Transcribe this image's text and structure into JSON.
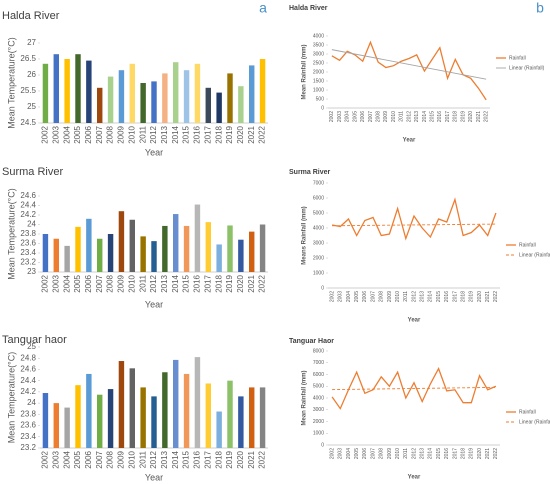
{
  "panels": [
    "a",
    "b"
  ],
  "chart_data": [
    {
      "type": "bar",
      "title": "Halda River",
      "xlabel": "Year",
      "ylabel": "Mean Temperature(°C)",
      "categories": [
        "2002",
        "2003",
        "2004",
        "2005",
        "2006",
        "2007",
        "2008",
        "2009",
        "2010",
        "2011",
        "2012",
        "2013",
        "2014",
        "2015",
        "2016",
        "2017",
        "2018",
        "2019",
        "2020",
        "2021",
        "2022"
      ],
      "values": [
        26.35,
        26.65,
        26.5,
        26.65,
        26.45,
        25.6,
        25.95,
        26.15,
        26.35,
        25.75,
        25.8,
        26.05,
        26.4,
        26.15,
        26.35,
        25.6,
        25.45,
        26.05,
        25.65,
        26.3,
        26.5
      ],
      "colors": [
        "#70ad47",
        "#4472c4",
        "#ffc000",
        "#43682b",
        "#264478",
        "#9e480e",
        "#a9d18e",
        "#5b9bd5",
        "#ffd966",
        "#43682b",
        "#4472c4",
        "#f4b183",
        "#a9d18e",
        "#9dc3e6",
        "#ffd966",
        "#3b4a5a",
        "#1f3864",
        "#997300",
        "#a9d18e",
        "#5b9bd5",
        "#ffc000"
      ],
      "ylim": [
        24.5,
        27
      ],
      "yticks": [
        24.5,
        25,
        25.5,
        26,
        26.5,
        27
      ],
      "grid": false
    },
    {
      "type": "bar",
      "title": "Surma River",
      "xlabel": "Year",
      "ylabel": "Mean Temperature(°C)",
      "categories": [
        "2002",
        "2003",
        "2004",
        "2005",
        "2006",
        "2007",
        "2008",
        "2009",
        "2010",
        "2011",
        "2012",
        "2013",
        "2014",
        "2015",
        "2016",
        "2017",
        "2018",
        "2019",
        "2020",
        "2021",
        "2022"
      ],
      "values": [
        23.8,
        23.7,
        23.55,
        23.95,
        24.12,
        23.7,
        23.8,
        24.28,
        24.1,
        23.75,
        23.65,
        23.97,
        24.22,
        23.97,
        24.42,
        24.05,
        23.58,
        23.98,
        23.68,
        23.85,
        24.0
      ],
      "colors": [
        "#4472c4",
        "#ed7d31",
        "#a5a5a5",
        "#ffc000",
        "#5b9bd5",
        "#70ad47",
        "#264478",
        "#9e480e",
        "#636363",
        "#997300",
        "#255e91",
        "#43682b",
        "#698ed0",
        "#f1975a",
        "#b7b7b7",
        "#ffcd33",
        "#7cafdd",
        "#8cc168",
        "#335aa1",
        "#d26012",
        "#848484"
      ],
      "ylim": [
        23,
        24.6
      ],
      "yticks": [
        23,
        23.2,
        23.4,
        23.6,
        23.8,
        24,
        24.2,
        24.4,
        24.6
      ],
      "grid": false
    },
    {
      "type": "bar",
      "title": "Tanguar haor",
      "xlabel": "Year",
      "ylabel": "Mean Temperature(°C)",
      "categories": [
        "2002",
        "2003",
        "2004",
        "2005",
        "2006",
        "2007",
        "2008",
        "2009",
        "2010",
        "2011",
        "2012",
        "2013",
        "2014",
        "2015",
        "2016",
        "2017",
        "2018",
        "2019",
        "2020",
        "2021",
        "2022"
      ],
      "values": [
        24.18,
        24.0,
        23.92,
        24.32,
        24.52,
        24.15,
        24.25,
        24.75,
        24.62,
        24.28,
        24.12,
        24.55,
        24.77,
        24.52,
        24.82,
        24.35,
        23.85,
        24.4,
        24.12,
        24.28,
        24.28
      ],
      "colors": [
        "#4472c4",
        "#ed7d31",
        "#a5a5a5",
        "#ffc000",
        "#5b9bd5",
        "#70ad47",
        "#264478",
        "#9e480e",
        "#636363",
        "#997300",
        "#255e91",
        "#43682b",
        "#698ed0",
        "#f1975a",
        "#b7b7b7",
        "#ffcd33",
        "#7cafdd",
        "#8cc168",
        "#335aa1",
        "#d26012",
        "#848484"
      ],
      "ylim": [
        23.2,
        25
      ],
      "yticks": [
        23.2,
        23.4,
        23.6,
        23.8,
        24,
        24.2,
        24.4,
        24.6,
        24.8,
        25
      ],
      "grid": false
    },
    {
      "type": "line",
      "title": "Halda River",
      "xlabel": "Year",
      "ylabel": "Mean Rainfall (mm)",
      "categories": [
        "2002",
        "2003",
        "2004",
        "2005",
        "2006",
        "2007",
        "2008",
        "2009",
        "2010",
        "2011",
        "2012",
        "2013",
        "2014",
        "2015",
        "2016",
        "2017",
        "2018",
        "2019",
        "2020",
        "2021",
        "2022"
      ],
      "series": [
        {
          "name": "Rainfall",
          "color": "#ed7d31",
          "values": [
            2900,
            2650,
            3150,
            2950,
            2600,
            3650,
            2550,
            2250,
            2350,
            2600,
            2750,
            2950,
            2050,
            2700,
            3350,
            1650,
            2700,
            1850,
            1650,
            1100,
            450
          ]
        }
      ],
      "trendline": {
        "name": "Linear (Rainfall)",
        "color": "#a5a5a5",
        "dashed": false
      },
      "ylim": [
        0,
        4000
      ],
      "yticks": [
        0,
        500,
        1000,
        1500,
        2000,
        2500,
        3000,
        3500,
        4000
      ],
      "grid": false
    },
    {
      "type": "line",
      "title": "Surma River",
      "xlabel": "Year",
      "ylabel": "Means Rainfall (mm)",
      "categories": [
        "2002",
        "2003",
        "2004",
        "2005",
        "2006",
        "2007",
        "2008",
        "2009",
        "2010",
        "2011",
        "2012",
        "2013",
        "2014",
        "2015",
        "2016",
        "2017",
        "2018",
        "2019",
        "2020",
        "2021",
        "2022"
      ],
      "series": [
        {
          "name": "Rainfall",
          "color": "#ed7d31",
          "values": [
            4200,
            4100,
            4600,
            3500,
            4500,
            4700,
            3500,
            3600,
            5300,
            3300,
            4800,
            4000,
            3400,
            4600,
            4400,
            5900,
            3500,
            3700,
            4200,
            3500,
            5000
          ]
        }
      ],
      "trendline": {
        "name": "Linear (Rainfall)",
        "color": "#ed7d31",
        "dashed": true
      },
      "ylim": [
        0,
        7000
      ],
      "yticks": [
        0,
        1000,
        2000,
        3000,
        4000,
        5000,
        6000,
        7000
      ],
      "grid": false
    },
    {
      "type": "line",
      "title": "Tanguar Haor",
      "xlabel": "Year",
      "ylabel": "Mean Rainfall (mm)",
      "categories": [
        "2002",
        "2003",
        "2004",
        "2005",
        "2006",
        "2007",
        "2008",
        "2009",
        "2010",
        "2011",
        "2012",
        "2013",
        "2014",
        "2015",
        "2016",
        "2017",
        "2018",
        "2019",
        "2020",
        "2021",
        "2022"
      ],
      "series": [
        {
          "name": "Rainfall",
          "color": "#ed7d31",
          "values": [
            4100,
            3100,
            4700,
            6200,
            4400,
            4700,
            5800,
            5000,
            6200,
            4000,
            5300,
            3700,
            5200,
            6500,
            4600,
            4700,
            3600,
            3600,
            5900,
            4700,
            5000
          ]
        }
      ],
      "trendline": {
        "name": "Linear (Rainfall)",
        "color": "#ed7d31",
        "dashed": true
      },
      "ylim": [
        0,
        8000
      ],
      "yticks": [
        0,
        1000,
        2000,
        3000,
        4000,
        5000,
        6000,
        7000,
        8000
      ],
      "grid": false
    }
  ]
}
